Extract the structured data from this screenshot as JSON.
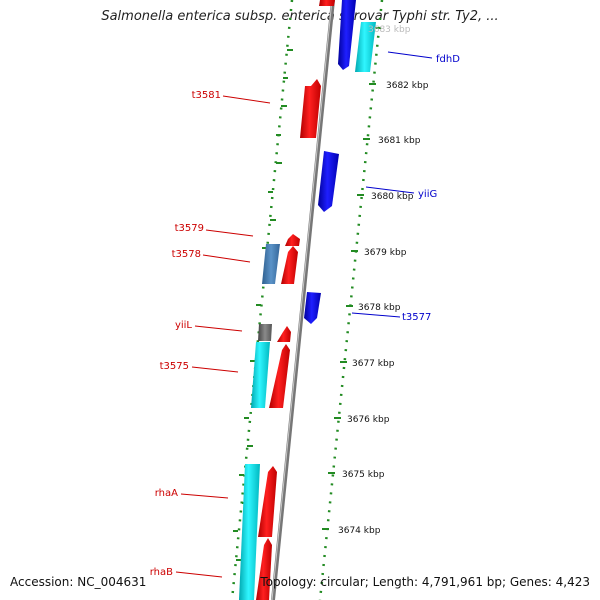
{
  "title": "Salmonella enterica subsp. enterica serovar Typhi str. Ty2, ...",
  "footer": {
    "accession": "Accession: NC_004631",
    "topology": "Topology: circular; Length: 4,791,961 bp; Genes: 4,423"
  },
  "colors": {
    "forward_gene": "#ff0000",
    "reverse_gene": "#0000ff",
    "cyan_gene": "#00e5ee",
    "steel_gene": "#4682b4",
    "grey_gene": "#666666",
    "backbone": "#888888",
    "tick": "#228b22",
    "ruler_text": "#111111",
    "label_forward": "#cc0000",
    "label_reverse": "#0000cc"
  },
  "ruler": [
    {
      "label": "3682 kbp"
    },
    {
      "label": "3681 kbp"
    },
    {
      "label": "3680 kbp"
    },
    {
      "label": "3679 kbp"
    },
    {
      "label": "3678 kbp"
    },
    {
      "label": "3677 kbp"
    },
    {
      "label": "3676 kbp"
    },
    {
      "label": "3675 kbp"
    },
    {
      "label": "3674 kbp"
    }
  ],
  "gene_labels": [
    {
      "name": "fdhD",
      "strand": "reverse"
    },
    {
      "name": "t3581",
      "strand": "forward"
    },
    {
      "name": "yiiG",
      "strand": "reverse"
    },
    {
      "name": "t3579",
      "strand": "forward"
    },
    {
      "name": "t3578",
      "strand": "forward"
    },
    {
      "name": "t3577",
      "strand": "reverse"
    },
    {
      "name": "yiiL",
      "strand": "forward"
    },
    {
      "name": "t3575",
      "strand": "forward"
    },
    {
      "name": "rhaA",
      "strand": "forward"
    },
    {
      "name": "rhaB",
      "strand": "forward"
    }
  ]
}
